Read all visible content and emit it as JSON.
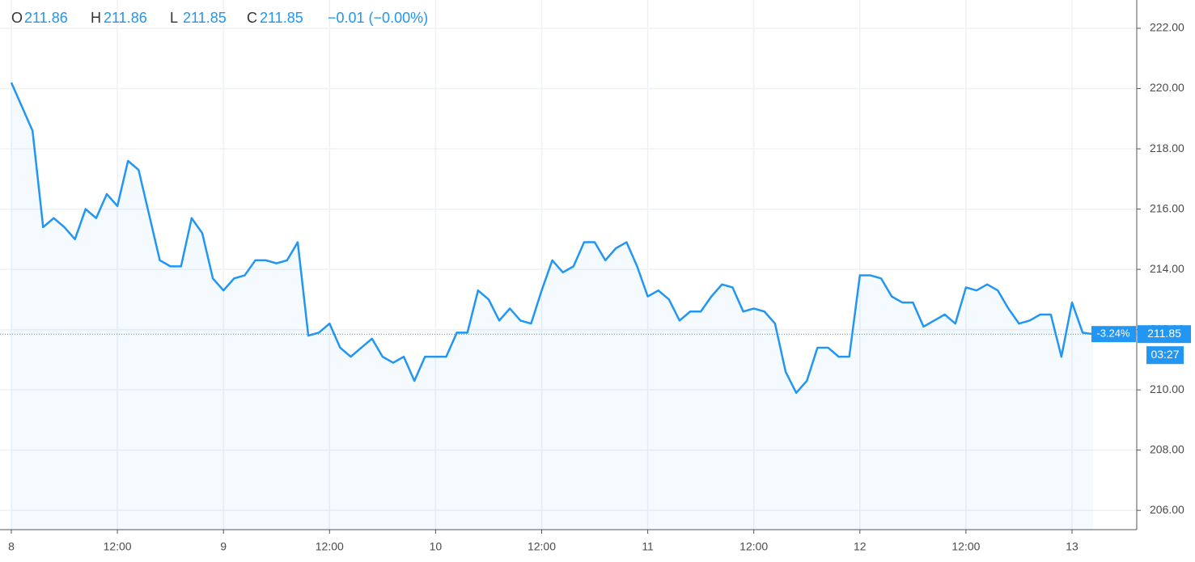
{
  "chart_data": {
    "type": "area",
    "header": [
      {
        "label": "O",
        "value": 211.86
      },
      {
        "label": "H",
        "value": 211.86
      },
      {
        "label": "L",
        "value": 211.85
      },
      {
        "label": "C",
        "value": 211.85
      }
    ],
    "change": "−0.01 (−0.00%)",
    "last_price": 211.85,
    "last_change": "-3.24%",
    "countdown": "03:27",
    "color": "#2196f3",
    "grid": true,
    "ylim": [
      205.36,
      222.94
    ],
    "yticks": [
      {
        "value": 206,
        "label": "206.00"
      },
      {
        "value": 208,
        "label": "208.00"
      },
      {
        "value": 210,
        "label": "210.00"
      },
      {
        "value": 212,
        "label": "212.00"
      },
      {
        "value": 214,
        "label": "214.00"
      },
      {
        "value": 216,
        "label": "216.00"
      },
      {
        "value": 218,
        "label": "218.00"
      },
      {
        "value": 220,
        "label": "220.00"
      },
      {
        "value": 222,
        "label": "222.00"
      }
    ],
    "categories": [
      "8",
      null,
      null,
      null,
      null,
      null,
      null,
      null,
      null,
      null,
      "12:00",
      null,
      null,
      null,
      null,
      null,
      null,
      null,
      null,
      null,
      "9",
      null,
      null,
      null,
      null,
      null,
      null,
      null,
      null,
      null,
      "12:00",
      null,
      null,
      null,
      null,
      null,
      null,
      null,
      null,
      null,
      "10",
      null,
      null,
      null,
      null,
      null,
      null,
      null,
      null,
      null,
      "12:00",
      null,
      null,
      null,
      null,
      null,
      null,
      null,
      null,
      null,
      "11",
      null,
      null,
      null,
      null,
      null,
      null,
      null,
      null,
      null,
      "12:00",
      null,
      null,
      null,
      null,
      null,
      null,
      null,
      null,
      null,
      "12",
      null,
      null,
      null,
      null,
      null,
      null,
      null,
      null,
      null,
      "12:00",
      null,
      null,
      null,
      null,
      null,
      null,
      null,
      null,
      null,
      "13",
      null,
      null
    ],
    "values": [
      220.2,
      219.4,
      218.6,
      215.4,
      215.7,
      215.4,
      215.0,
      216.0,
      215.7,
      216.5,
      216.1,
      217.6,
      217.3,
      215.8,
      214.3,
      214.1,
      214.1,
      215.7,
      215.2,
      213.7,
      213.3,
      213.7,
      213.8,
      214.3,
      214.3,
      214.2,
      214.3,
      214.9,
      211.8,
      211.9,
      212.2,
      211.4,
      211.1,
      211.4,
      211.7,
      211.1,
      210.9,
      211.1,
      210.3,
      211.1,
      211.1,
      211.1,
      211.9,
      211.9,
      213.3,
      213.0,
      212.3,
      212.7,
      212.3,
      212.2,
      213.3,
      214.3,
      213.9,
      214.1,
      214.9,
      214.9,
      214.3,
      214.7,
      214.9,
      214.1,
      213.1,
      213.3,
      213.0,
      212.3,
      212.6,
      212.6,
      213.1,
      213.5,
      213.4,
      212.6,
      212.7,
      212.6,
      212.2,
      210.6,
      209.9,
      210.3,
      211.4,
      211.4,
      211.1,
      211.1,
      213.8,
      213.8,
      213.7,
      213.1,
      212.9,
      212.9,
      212.1,
      212.3,
      212.5,
      212.2,
      213.4,
      213.3,
      213.5,
      213.3,
      212.7,
      212.2,
      212.3,
      212.5,
      212.5,
      211.1,
      212.9,
      211.9,
      211.85
    ]
  }
}
